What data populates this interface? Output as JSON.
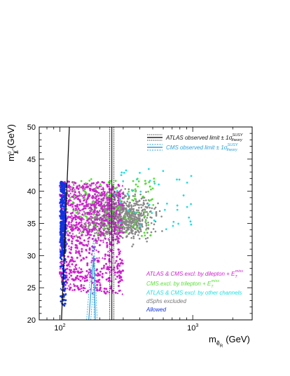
{
  "chart_data": {
    "type": "scatter",
    "title": "",
    "xlabel": "m",
    "xlabel_sub": "ẽ",
    "xlabel_subsub": "R",
    "xlabel_unit": "(GeV)",
    "ylabel": "m",
    "ylabel_sub": "χ̃",
    "ylabel_subsup": "0",
    "ylabel_subsub": "1",
    "ylabel_unit": "(GeV)",
    "xscale": "log",
    "xlim": [
      70,
      2800
    ],
    "ylim": [
      20,
      50
    ],
    "x_ticks": [
      {
        "value": 100,
        "base": "10",
        "exp": "2"
      },
      {
        "value": 1000,
        "base": "10",
        "exp": "3"
      }
    ],
    "y_ticks": [
      20,
      25,
      30,
      35,
      40,
      45,
      50
    ],
    "grid": false,
    "legend_top": {
      "placement": "top-right",
      "entries": [
        {
          "text": "ATLAS observed limit ± 1σ",
          "sup": "SUSY",
          "sub": "theory",
          "color": "#222222",
          "style": "solid-dotted"
        },
        {
          "text": "CMS observed limit ± 1σ",
          "sup": "SUSY",
          "sub": "theory",
          "color": "#2a9fd6",
          "style": "solid-dashed"
        }
      ]
    },
    "legend_bottom": {
      "placement": "bottom-right",
      "entries": [
        {
          "text": "ATLAS & CMS excl. by dilepton + E",
          "sup": "miss",
          "sub": "T",
          "color": "#cc22cc"
        },
        {
          "text": "CMS excl. by trilepton + E",
          "sup": "miss",
          "sub": "T",
          "color": "#55dd33"
        },
        {
          "text": "ATLAS & CMS excl. by other channels",
          "sup": "",
          "sub": "",
          "color": "#22dddd"
        },
        {
          "text": "dSphs excluded",
          "sup": "",
          "sub": "",
          "color": "#888888"
        },
        {
          "text": "Allowed",
          "sup": "",
          "sub": "",
          "color": "#1133dd"
        }
      ]
    },
    "series": [
      {
        "name": "ATLAS & CMS excl. by dilepton + E_T^miss",
        "color": "#cc22cc",
        "x_range": [
          100,
          300
        ],
        "y_range": [
          24,
          41.5
        ]
      },
      {
        "name": "CMS excl. by trilepton + E_T^miss",
        "color": "#55dd33",
        "x_range": [
          110,
          520
        ],
        "y_range": [
          26,
          42
        ]
      },
      {
        "name": "ATLAS & CMS excl. by other channels",
        "color": "#22dddd",
        "x_range": [
          250,
          1000
        ],
        "y_range": [
          33,
          43.5
        ]
      },
      {
        "name": "dSphs excluded",
        "color": "#888888",
        "x_range": [
          150,
          1200
        ],
        "y_range": [
          24,
          42
        ]
      },
      {
        "name": "Allowed",
        "color": "#1133dd",
        "x_range": [
          100,
          112
        ],
        "y_range": [
          22,
          41.5
        ]
      }
    ],
    "limit_lines": [
      {
        "name": "ATLAS observed limit",
        "color": "#111111",
        "points": [
          [
            103,
            20
          ],
          [
            118,
            50
          ]
        ]
      },
      {
        "name": "ATLAS observed limit (vertical)",
        "color": "#333333",
        "points": [
          [
            246,
            20
          ],
          [
            246,
            50
          ]
        ]
      },
      {
        "name": "CMS observed limit",
        "color": "#2a9fd6",
        "points": [
          [
            165,
            20
          ],
          [
            180,
            30
          ],
          [
            185,
            20
          ]
        ]
      }
    ]
  }
}
